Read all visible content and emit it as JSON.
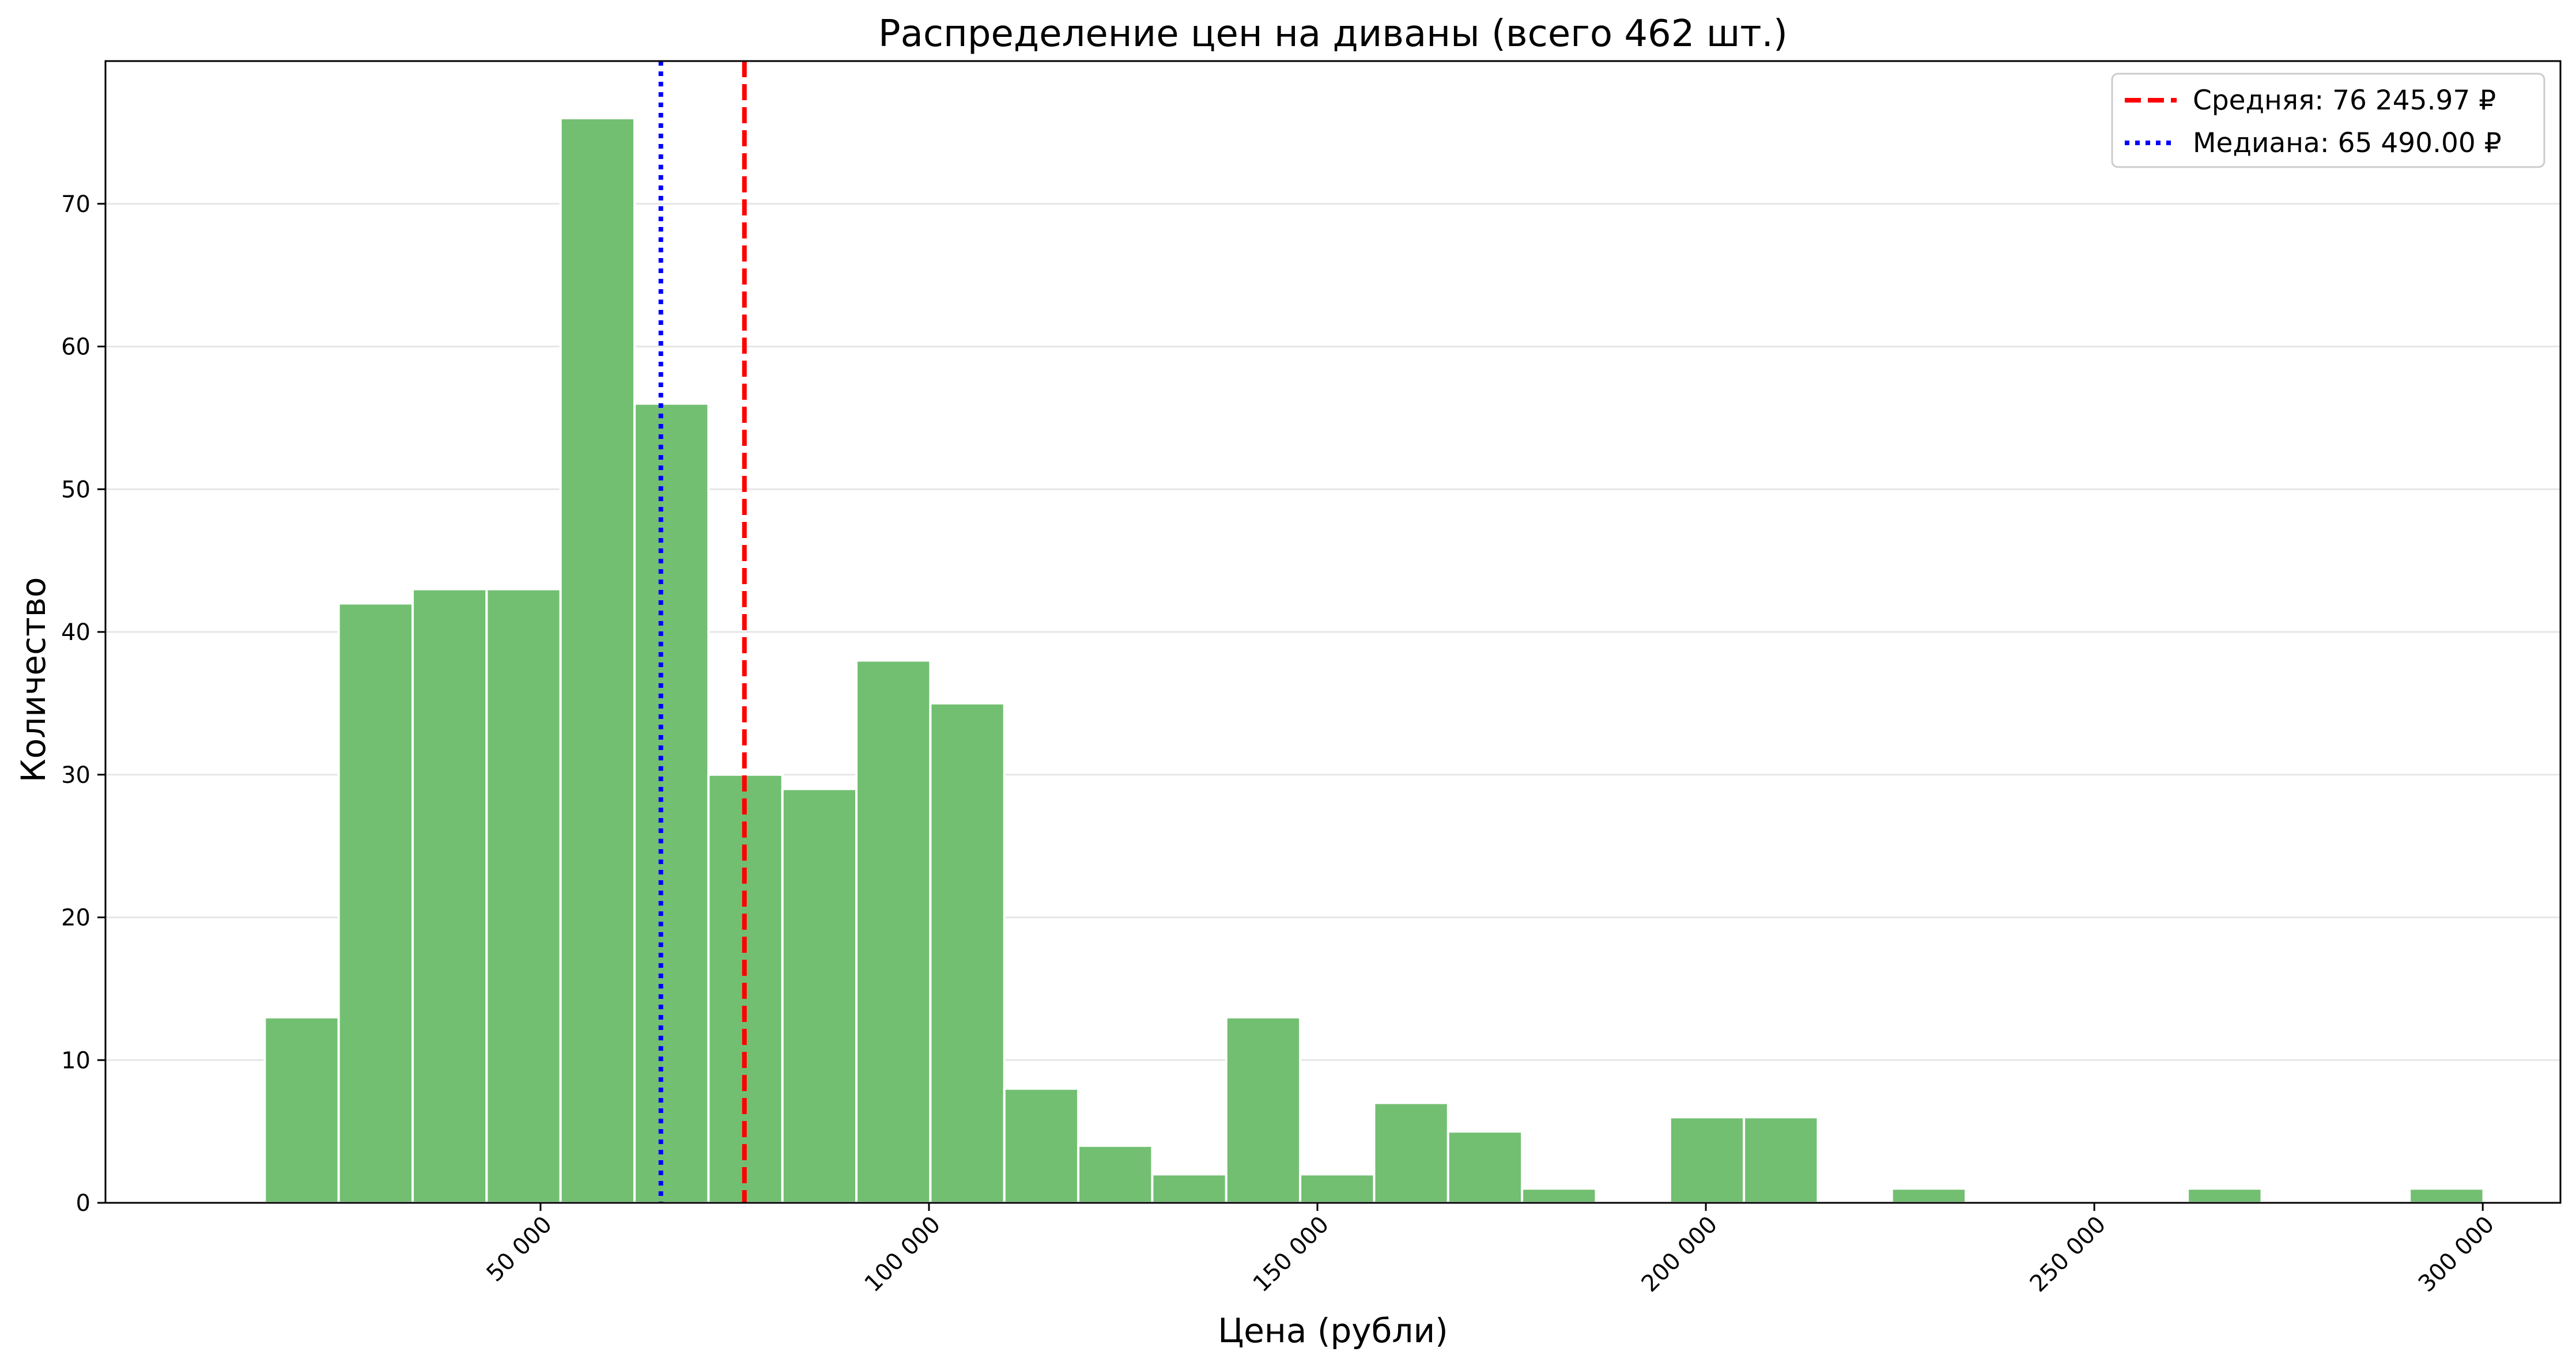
{
  "chart_data": {
    "type": "bar",
    "title": "Распределение цен на диваны (всего 462 шт.)",
    "xlabel": "Цена (рубли)",
    "ylabel": "Количество",
    "xlim": [
      -6000,
      310000
    ],
    "ylim": [
      0,
      80
    ],
    "xticks": [
      {
        "value": 50000,
        "label": "50 000"
      },
      {
        "value": 100000,
        "label": "100 000"
      },
      {
        "value": 150000,
        "label": "150 000"
      },
      {
        "value": 200000,
        "label": "200 000"
      },
      {
        "value": 250000,
        "label": "250 000"
      },
      {
        "value": 300000,
        "label": "300 000"
      }
    ],
    "yticks": [
      {
        "value": 0,
        "label": "0"
      },
      {
        "value": 10,
        "label": "10"
      },
      {
        "value": 20,
        "label": "20"
      },
      {
        "value": 30,
        "label": "30"
      },
      {
        "value": 40,
        "label": "40"
      },
      {
        "value": 50,
        "label": "50"
      },
      {
        "value": 60,
        "label": "60"
      },
      {
        "value": 70,
        "label": "70"
      }
    ],
    "grid": "horizontal",
    "legend_position": "top-right",
    "bar_color": "#72bf72",
    "bin_start": 14500,
    "bin_width": 9520,
    "counts": [
      13,
      42,
      43,
      43,
      76,
      56,
      30,
      29,
      38,
      35,
      8,
      4,
      2,
      13,
      2,
      7,
      5,
      1,
      0,
      6,
      6,
      0,
      1,
      0,
      0,
      0,
      1,
      0,
      0,
      1
    ],
    "lines": [
      {
        "name": "Средняя: 76 245.97 ₽",
        "value": 76245.97,
        "color": "#ff0000",
        "style": "dashed"
      },
      {
        "name": "Медиана: 65 490.00 ₽",
        "value": 65490.0,
        "color": "#0000ff",
        "style": "dotted"
      }
    ]
  }
}
